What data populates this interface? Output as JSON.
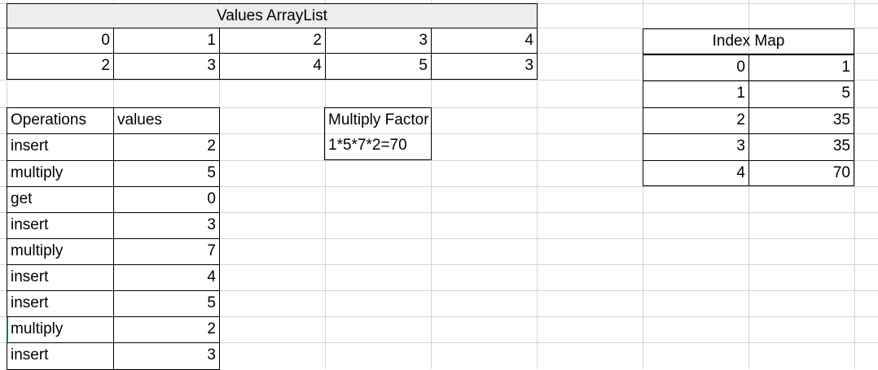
{
  "values_arraylist": {
    "title": "Values ArrayList",
    "indices": [
      "0",
      "1",
      "2",
      "3",
      "4"
    ],
    "values": [
      "2",
      "3",
      "4",
      "5",
      "3"
    ]
  },
  "operations": {
    "header_operation": "Operations",
    "header_value": "values",
    "rows": [
      {
        "op": "insert",
        "val": "2"
      },
      {
        "op": "multiply",
        "val": "5"
      },
      {
        "op": "get",
        "val": "0"
      },
      {
        "op": "insert",
        "val": "3"
      },
      {
        "op": "multiply",
        "val": "7"
      },
      {
        "op": "insert",
        "val": "4"
      },
      {
        "op": "insert",
        "val": "5"
      },
      {
        "op": "multiply",
        "val": "2"
      },
      {
        "op": "insert",
        "val": "3"
      }
    ]
  },
  "multiply_factor": {
    "label": "Multiply Factor",
    "value": "1*5*7*2=70"
  },
  "index_map": {
    "title": "Index Map",
    "rows": [
      {
        "key": "0",
        "val": "1"
      },
      {
        "key": "1",
        "val": "5"
      },
      {
        "key": "2",
        "val": "35"
      },
      {
        "key": "3",
        "val": "35"
      },
      {
        "key": "4",
        "val": "70"
      }
    ]
  },
  "colors": {
    "gridline": "#d4d4d4",
    "header_fill": "#ededed",
    "active_cell": "#217346"
  }
}
